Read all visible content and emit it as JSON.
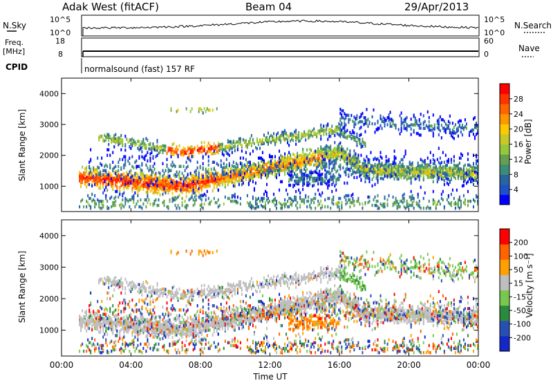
{
  "header": {
    "station": "Adak West (fitACF)",
    "beam": "Beam 04",
    "date": "29/Apr/2013"
  },
  "top_panels": {
    "nsky_label": "N.Sky",
    "nsky_ticks": [
      "10^5",
      "10^0"
    ],
    "nsearch_label": "N.Search",
    "nsearch_ticks": [
      "10^5",
      "10^0"
    ],
    "freq_label_1": "Freq.",
    "freq_label_2": "[MHz]",
    "freq_ticks": [
      "18",
      "8"
    ],
    "nave_label": "Nave",
    "nave_ticks": [
      "60",
      "0"
    ],
    "cpid_label": "CPID",
    "cpid_text": "normalsound (fast) 157 RF"
  },
  "chart_data": [
    {
      "type": "heatmap",
      "name": "power",
      "ylabel": "Slant Range [km]",
      "xlabel": "",
      "ylim": [
        180,
        4500
      ],
      "yticks": [
        1000,
        2000,
        3000,
        4000
      ],
      "xlim": [
        0,
        24
      ],
      "colorbar_label": "Power [dB]",
      "colorbar_ticks": [
        "28",
        "24",
        "20",
        "16",
        "12",
        "8",
        "4"
      ],
      "colorscale": [
        "#0000ff",
        "#1e50c8",
        "#2a64a0",
        "#3c8c78",
        "#64a050",
        "#96c83c",
        "#c8c828",
        "#ffc800",
        "#ff9600",
        "#ff6400",
        "#ff3200",
        "#ff0000"
      ]
    },
    {
      "type": "heatmap",
      "name": "velocity",
      "ylabel": "Slant Range [km]",
      "xlabel": "Time UT",
      "ylim": [
        180,
        4500
      ],
      "yticks": [
        1000,
        2000,
        3000,
        4000
      ],
      "xlim": [
        0,
        24
      ],
      "xticks": [
        "00:00",
        "04:00",
        "08:00",
        "12:00",
        "16:00",
        "20:00",
        "00:00"
      ],
      "colorbar_label": "Velocity [m s⁻¹]",
      "colorbar_ticks": [
        "200",
        "100",
        "50",
        "15",
        "-15",
        "-50",
        "-100",
        "-200"
      ],
      "colorscale": [
        "#1428c8",
        "#2850b4",
        "#2c8a3c",
        "#78c850",
        "#bebebe",
        "#ffa000",
        "#ff6400",
        "#ff0000"
      ]
    }
  ]
}
